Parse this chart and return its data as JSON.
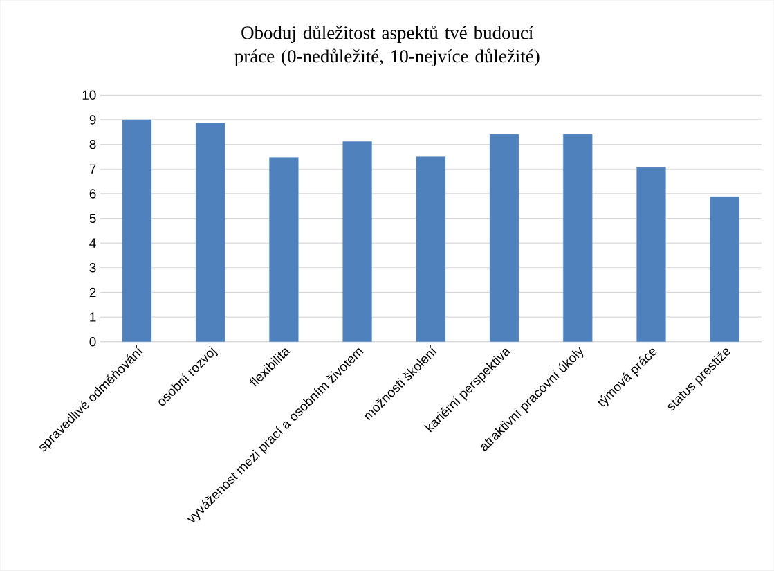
{
  "chart_data": {
    "type": "bar",
    "title": "Oboduj důležitost aspektů tvé budoucí práce (0-nedůležité, 10-nejvíce důležité)",
    "categories": [
      "spravedlivé odměňování",
      "osobní rozvoj",
      "flexibilita",
      "vyváženost mezi prací a osobním životem",
      "možnosti školení",
      "kariérní perspektiva",
      "atraktivní pracovní úkoly",
      "týmová práce",
      "status prestiže"
    ],
    "values": [
      9.0,
      8.87,
      7.47,
      8.12,
      7.5,
      8.41,
      8.41,
      7.06,
      5.88
    ],
    "color": "#4f81bd",
    "ylim": [
      0,
      10
    ],
    "yticks": [
      0,
      1,
      2,
      3,
      4,
      5,
      6,
      7,
      8,
      9,
      10
    ],
    "grid": "y"
  }
}
